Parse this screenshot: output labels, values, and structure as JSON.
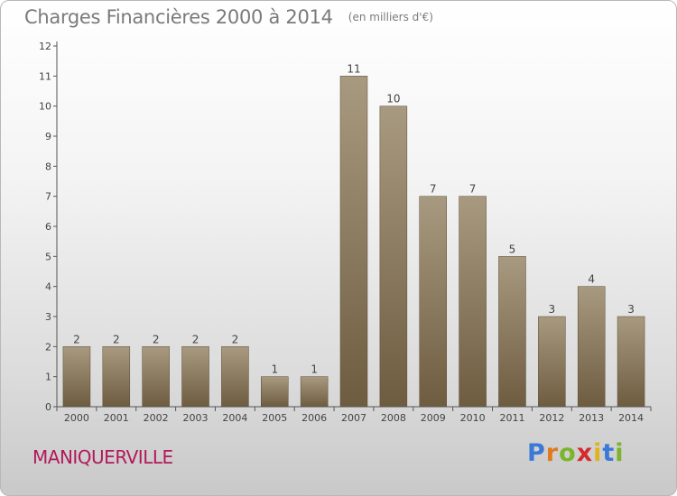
{
  "title": "Charges Financières 2000 à 2014",
  "subtitle": "(en milliers d'€)",
  "commune": "MANIQUERVILLE",
  "logo": {
    "letters": [
      "P",
      "r",
      "o",
      "x",
      "i",
      "t",
      "i"
    ],
    "colors": [
      "#3a7ad6",
      "#e07a1f",
      "#7ab52a",
      "#d42a2a",
      "#e0b21f",
      "#3a7ad6",
      "#7ab52a"
    ]
  },
  "colors": {
    "bar_top": "#a89a80",
    "bar_bottom": "#6e5c40",
    "axis": "#555555",
    "text": "#444444"
  },
  "chart_data": {
    "type": "bar",
    "categories": [
      "2000",
      "2001",
      "2002",
      "2003",
      "2004",
      "2005",
      "2006",
      "2007",
      "2008",
      "2009",
      "2010",
      "2011",
      "2012",
      "2013",
      "2014"
    ],
    "values": [
      2,
      2,
      2,
      2,
      2,
      1,
      1,
      11,
      10,
      7,
      7,
      5,
      3,
      4,
      3
    ],
    "ylim": [
      0,
      12
    ],
    "yticks": [
      0,
      1,
      2,
      3,
      4,
      5,
      6,
      7,
      8,
      9,
      10,
      11,
      12
    ],
    "grid": false
  }
}
